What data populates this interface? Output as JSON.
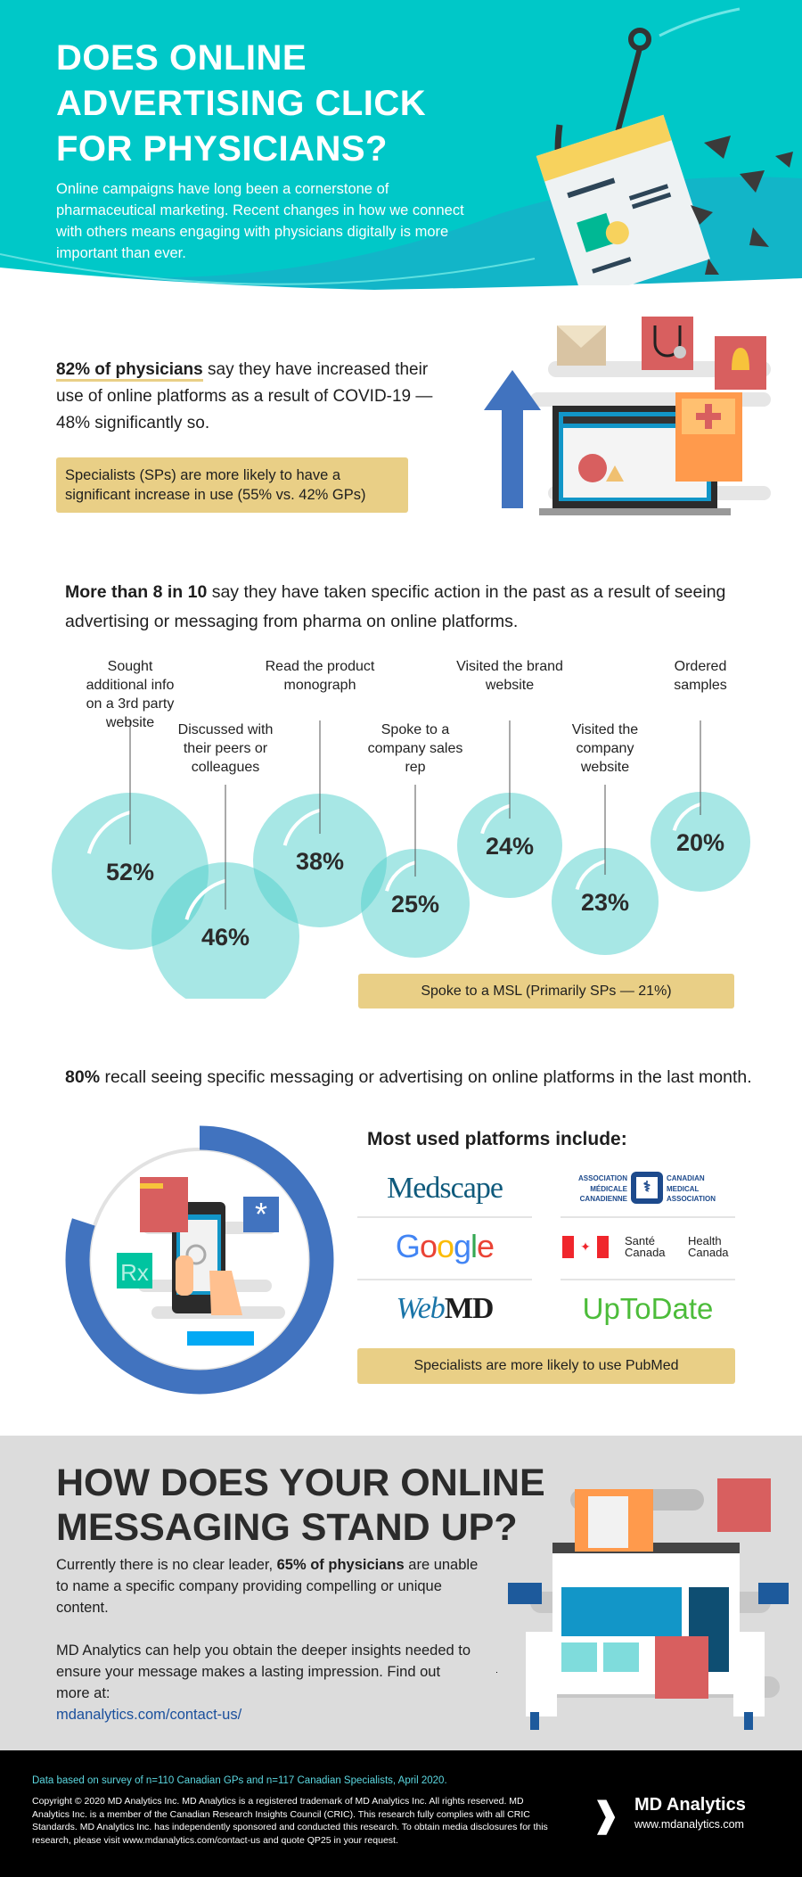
{
  "hero": {
    "title": "DOES ONLINE ADVERTISING CLICK FOR PHYSICIANS?",
    "intro": "Online campaigns have long been a cornerstone of pharmaceutical marketing. Recent changes in how we connect with others means engaging with physicians digitally is more important than ever."
  },
  "covid": {
    "stat_bold": "82% of physicians",
    "stat_rest": " say they have increased their use of online platforms as a result of COVID-19 — 48% significantly so.",
    "callout": "Specialists (SPs) are more likely to have a significant increase in use (55% vs. 42% GPs)"
  },
  "actions": {
    "heading_bold": "More than 8 in 10",
    "heading_rest": " say they have taken specific action in the past as a result of seeing advertising or messaging from pharma on online platforms.",
    "items": [
      {
        "label": "Sought additional info on a 3rd party website",
        "value": "52%"
      },
      {
        "label": "Discussed with their peers or colleagues",
        "value": "46%"
      },
      {
        "label": "Read the product monograph",
        "value": "38%"
      },
      {
        "label": "Spoke to a company sales rep",
        "value": "25%"
      },
      {
        "label": "Visited the brand website",
        "value": "24%"
      },
      {
        "label": "Visited the company website",
        "value": "23%"
      },
      {
        "label": "Ordered samples",
        "value": "20%"
      }
    ],
    "callout": "Spoke to a MSL (Primarily SPs — 21%)"
  },
  "recall": {
    "stat_bold": "80%",
    "stat_rest": " recall seeing specific messaging or advertising on online platforms in the last month.",
    "progress": 0.8,
    "platforms_heading": "Most used platforms include:",
    "platforms": {
      "medscape": "Medscape",
      "cma_fr": "ASSOCIATION MÉDICALE CANADIENNE",
      "cma_en": "CANADIAN MEDICAL ASSOCIATION",
      "google": "Google",
      "hc_fr": "Santé Canada",
      "hc_en": "Health Canada",
      "webmd_a": "Web",
      "webmd_b": "MD",
      "uptodate": "UpToDate"
    },
    "callout": "Specialists are more likely to use PubMed"
  },
  "cta": {
    "title": "HOW DOES YOUR ONLINE MESSAGING STAND UP?",
    "p1_a": "Currently there is no clear leader, ",
    "p1_bold": "65% of physicians",
    "p1_b": " are unable to name a specific company providing compelling or unique content.",
    "p2": "MD Analytics can help you obtain the deeper insights needed to ensure your message makes a lasting impression. Find out more at:",
    "link": "mdanalytics.com/contact-us/"
  },
  "footer": {
    "source": "Data based on survey of n=110 Canadian GPs and n=117 Canadian Specialists, April 2020.",
    "copyright": "Copyright © 2020 MD Analytics Inc. MD Analytics is a registered trademark of MD Analytics Inc. All rights reserved. MD Analytics Inc. is a member of the Canadian Research Insights Council (CRIC). This research fully complies with all CRIC Standards. MD Analytics Inc. has independently sponsored and conducted this research. To obtain media disclosures for this research, please visit www.mdanalytics.com/contact-us and quote QP25 in your request.",
    "brand": "MD Analytics",
    "url": "www.mdanalytics.com"
  },
  "colors": {
    "teal": "#00c8c8",
    "tan": "#e9cf86",
    "blue": "#4173bf",
    "gray": "#dcdcdc"
  }
}
